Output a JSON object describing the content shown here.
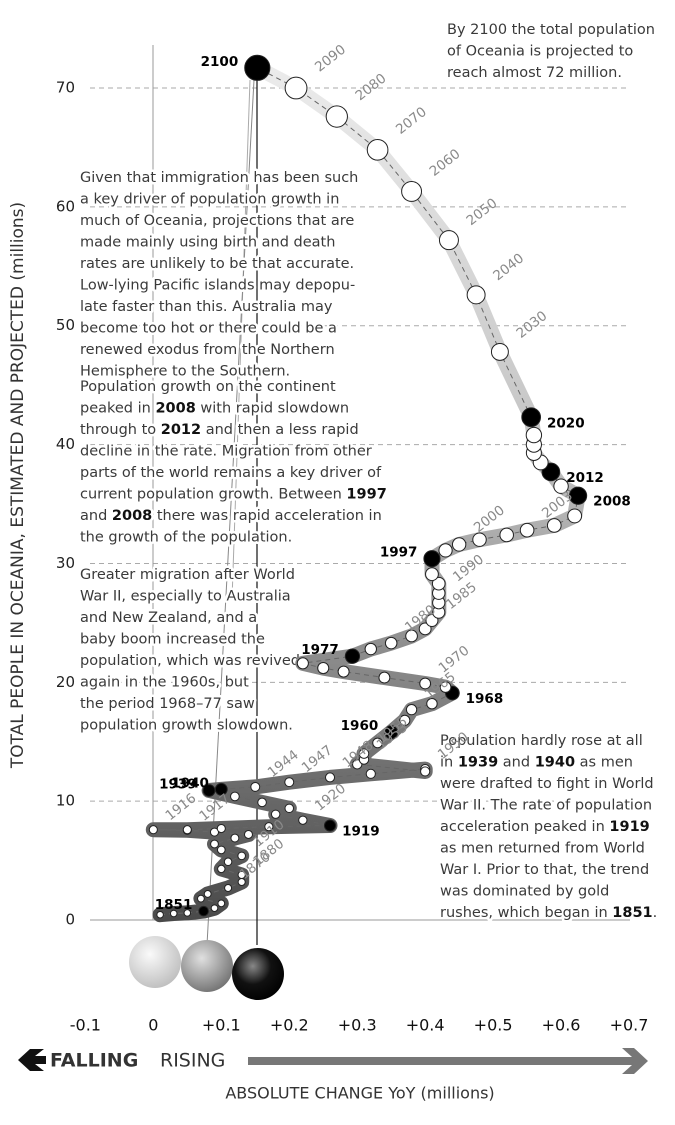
{
  "chart_data": {
    "type": "connected-scatter",
    "y_label": "TOTAL PEOPLE IN OCEANIA, ESTIMATED AND PROJECTED (millions)",
    "x_label": "ABSOLUTE CHANGE YoY (millions)",
    "direction_labels": {
      "falling": "FALLING",
      "rising": "RISING"
    },
    "xlim": [
      -0.13,
      0.75
    ],
    "ylim": [
      -3,
      75
    ],
    "xticks": [
      -0.1,
      0,
      {
        "value": 0.1,
        "label": "+0.1"
      },
      {
        "value": 0.2,
        "label": "+0.2"
      },
      {
        "value": 0.3,
        "label": "+0.3"
      },
      {
        "value": 0.4,
        "label": "+0.4"
      },
      {
        "value": 0.5,
        "label": "+0.5"
      },
      {
        "value": 0.6,
        "label": "+0.6"
      },
      {
        "value": 0.7,
        "label": "+0.7"
      }
    ],
    "yticks": [
      0,
      10,
      20,
      30,
      40,
      50,
      60,
      70
    ],
    "grid": true,
    "years": [
      null,
      null,
      null,
      "1851",
      null,
      null,
      null,
      null,
      "1870",
      null,
      "1880",
      null,
      null,
      "1910",
      null,
      null,
      null,
      null,
      null,
      "1917",
      "1916",
      null,
      null,
      null,
      "1919",
      "1920",
      null,
      null,
      null,
      null,
      "1939",
      "1940",
      "1944",
      "1947",
      "1948",
      null,
      "1950",
      null,
      null,
      "1953",
      "1955",
      null,
      "1960",
      null,
      "1965",
      null,
      "1968",
      null,
      "1970",
      null,
      null,
      null,
      null,
      "1977",
      null,
      "1980",
      null,
      null,
      "1985",
      null,
      null,
      "1990",
      null,
      null,
      "1997",
      null,
      "2000",
      null,
      null,
      "2003",
      null,
      null,
      "2008",
      null,
      "2012",
      null,
      null,
      null,
      null,
      "2020",
      "2030",
      "2040",
      "2050",
      "2060",
      "2070",
      "2080",
      "2090",
      "2100"
    ],
    "x": [
      0.01,
      0.03,
      0.05,
      0.074,
      0.09,
      0.1,
      0.07,
      0.08,
      0.11,
      0.13,
      0.13,
      0.1,
      0.11,
      0.13,
      0.1,
      0.09,
      0.12,
      0.14,
      0.09,
      0.05,
      0.0,
      0.05,
      0.1,
      0.17,
      0.26,
      0.22,
      0.18,
      0.2,
      0.16,
      0.12,
      0.082,
      0.1,
      0.15,
      0.2,
      0.26,
      0.32,
      0.4,
      0.4,
      0.3,
      0.31,
      0.31,
      0.33,
      0.35,
      0.37,
      0.38,
      0.41,
      0.44,
      0.43,
      0.4,
      0.34,
      0.28,
      0.25,
      0.22,
      0.293,
      0.32,
      0.35,
      0.38,
      0.4,
      0.41,
      0.42,
      0.42,
      0.42,
      0.42,
      0.41,
      0.41,
      0.43,
      0.45,
      0.48,
      0.52,
      0.55,
      0.59,
      0.62,
      0.625,
      0.6,
      0.585,
      0.57,
      0.56,
      0.56,
      0.56,
      0.556,
      0.51,
      0.475,
      0.435,
      0.38,
      0.33,
      0.27,
      0.21,
      0.153
    ],
    "y": [
      0.45,
      0.55,
      0.6,
      0.75,
      1.0,
      1.4,
      1.8,
      2.2,
      2.7,
      3.2,
      3.8,
      4.3,
      4.9,
      5.4,
      5.9,
      6.4,
      6.9,
      7.2,
      7.4,
      7.55,
      7.6,
      7.6,
      7.7,
      7.85,
      7.95,
      8.4,
      8.9,
      9.4,
      9.9,
      10.4,
      10.9,
      11.0,
      11.2,
      11.6,
      12.0,
      12.3,
      12.7,
      12.5,
      13.1,
      13.5,
      14.0,
      14.9,
      15.8,
      16.8,
      17.7,
      18.2,
      19.1,
      19.6,
      19.9,
      20.4,
      20.9,
      21.2,
      21.6,
      22.2,
      22.8,
      23.3,
      23.9,
      24.5,
      25.2,
      25.9,
      26.7,
      27.5,
      28.3,
      29.1,
      30.4,
      31.1,
      31.6,
      32.0,
      32.4,
      32.8,
      33.2,
      34.0,
      35.7,
      36.5,
      37.7,
      38.5,
      39.3,
      40.0,
      40.8,
      42.3,
      47.8,
      52.6,
      57.2,
      61.3,
      64.8,
      67.6,
      70.0,
      71.7
    ],
    "highlighted": [
      "1851",
      "1919",
      "1939",
      "1940",
      "1960",
      "1968",
      "1977",
      "1997",
      "2008",
      "2012",
      "2020",
      "2100"
    ],
    "annotations": [
      {
        "lines": [
          "By 2100 the total population",
          "of Oceania is projected to",
          "reach almost 72 million."
        ]
      },
      {
        "lines": [
          "Given that immigration has been such",
          "a key driver of population growth in",
          "much of Oceania, projections that are",
          "made mainly using birth and death",
          "rates are unlikely to be that accurate.",
          "Low-lying Pacific islands may depopu-",
          "late faster than this. Australia may",
          "become too hot or there could be a",
          "renewed exodus from the Northern",
          "Hemisphere to the Southern."
        ]
      },
      {
        "lines": [
          "Population growth on the continent",
          "peaked in 2008 with rapid slowdown",
          "through to 2012 and then a less rapid",
          "decline in the rate. Migration from other",
          "parts of the world remains a key driver of",
          "current population growth. Between 1997",
          "and 2008 there was rapid acceleration in",
          "the growth of the population."
        ]
      },
      {
        "lines": [
          "Greater migration after World",
          "War II, especially to Australia",
          "and New Zealand, and a",
          "baby boom increased the",
          "population, which was revived",
          "again in the 1960s, but",
          "the period 1968–77 saw",
          "population growth slowdown."
        ]
      },
      {
        "lines": [
          "Population hardly rose at all",
          "in 1939 and 1940 as men",
          "were drafted to fight in World",
          "War II. The rate of population",
          "acceleration peaked in 1919",
          "as men returned from World",
          "War I. Prior to that, the trend",
          "was dominated by gold",
          "rushes, which began in 1851."
        ]
      }
    ]
  }
}
